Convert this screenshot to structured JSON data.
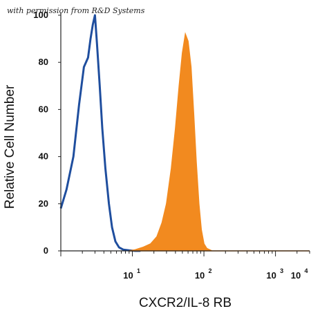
{
  "watermark": "with permission from R&D Systems",
  "chart_data": {
    "type": "area",
    "xlabel": "CXCR2/IL-8 RB",
    "ylabel": "Relative Cell Number",
    "xscale": "log",
    "xlim": [
      1,
      3000
    ],
    "ylim": [
      0,
      100
    ],
    "yticks": [
      0,
      20,
      40,
      60,
      80,
      100
    ],
    "xticks": [
      {
        "value": 10,
        "base": "10",
        "exp": "1"
      },
      {
        "value": 100,
        "base": "10",
        "exp": "2"
      },
      {
        "value": 1000,
        "base": "10",
        "exp": "3"
      },
      {
        "value": 10000,
        "base": "10",
        "exp": "4"
      }
    ],
    "series": [
      {
        "style": "line",
        "color": "#1f4e9e",
        "x": [
          1.0,
          1.2,
          1.5,
          1.8,
          2.1,
          2.4,
          2.6,
          2.8,
          3.0,
          3.2,
          3.5,
          3.8,
          4.2,
          4.7,
          5.2,
          5.8,
          6.5,
          7.5,
          9.0,
          11.0,
          13.0
        ],
        "y": [
          18,
          26,
          40,
          62,
          78,
          82,
          90,
          96,
          100,
          88,
          70,
          52,
          35,
          20,
          10,
          4,
          1.5,
          0.5,
          0.2,
          0,
          0
        ]
      },
      {
        "style": "filled",
        "color": "#f28a1f",
        "x": [
          9.0,
          11.0,
          14.0,
          18.0,
          22.0,
          26.0,
          30.0,
          35.0,
          40.0,
          45.0,
          50.0,
          55.0,
          60.0,
          66.0,
          72.0,
          78.0,
          85.0,
          92.0,
          100.0,
          110.0,
          130.0,
          3000.0
        ],
        "y": [
          0,
          0.5,
          1.5,
          3,
          6,
          12,
          20,
          35,
          52,
          70,
          84,
          92,
          89,
          78,
          58,
          38,
          20,
          9,
          3,
          1,
          0,
          0
        ]
      }
    ]
  }
}
